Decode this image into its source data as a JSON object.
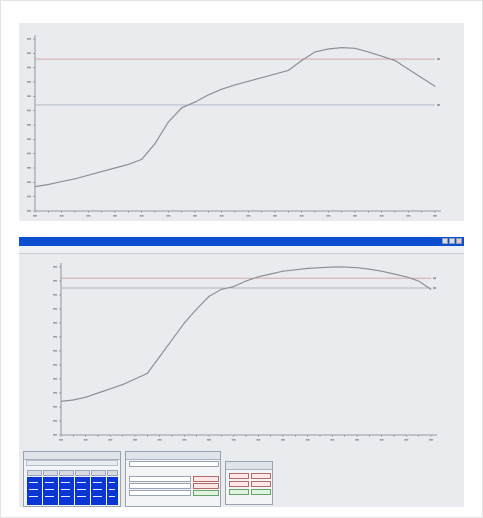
{
  "chart_data": [
    {
      "type": "line",
      "title": "",
      "xlabel": "",
      "ylabel": "",
      "xlim": [
        0,
        300
      ],
      "ylim": [
        0,
        1200
      ],
      "x": [
        0,
        10,
        20,
        30,
        40,
        50,
        60,
        70,
        80,
        90,
        100,
        110,
        120,
        130,
        140,
        150,
        160,
        170,
        180,
        190,
        200,
        210,
        220,
        230,
        240,
        250,
        260,
        270,
        280,
        290,
        300
      ],
      "series": [
        {
          "name": "",
          "values": [
            170,
            185,
            205,
            225,
            250,
            275,
            300,
            325,
            360,
            470,
            620,
            720,
            760,
            810,
            850,
            880,
            905,
            930,
            955,
            980,
            1050,
            1110,
            1130,
            1140,
            1135,
            1110,
            1080,
            1050,
            990,
            930,
            870
          ]
        }
      ],
      "reference_lines": [
        {
          "value": 1060,
          "color": "#d0a0a0"
        },
        {
          "value": 740,
          "color": "#aab4c0"
        }
      ],
      "y_ticks_shown": true,
      "x_ticks_shown": true,
      "grid": false,
      "legend": "none"
    },
    {
      "type": "line",
      "title": "",
      "xlabel": "",
      "ylabel": "",
      "xlim": [
        0,
        300
      ],
      "ylim": [
        0,
        1200
      ],
      "x": [
        0,
        10,
        20,
        30,
        40,
        50,
        60,
        70,
        80,
        90,
        100,
        110,
        120,
        130,
        140,
        150,
        160,
        170,
        180,
        190,
        200,
        210,
        220,
        230,
        240,
        250,
        260,
        270,
        280,
        290,
        300
      ],
      "series": [
        {
          "name": "",
          "values": [
            240,
            250,
            270,
            300,
            330,
            360,
            400,
            440,
            560,
            680,
            800,
            900,
            990,
            1040,
            1060,
            1100,
            1130,
            1150,
            1170,
            1180,
            1190,
            1195,
            1200,
            1200,
            1195,
            1185,
            1170,
            1150,
            1130,
            1100,
            1040
          ]
        }
      ],
      "reference_lines": [
        {
          "value": 1120,
          "color": "#d0a0a0"
        },
        {
          "value": 1050,
          "color": "#aab4c0"
        }
      ],
      "y_ticks_shown": true,
      "x_ticks_shown": true,
      "grid": false,
      "legend": "none"
    }
  ],
  "colors": {
    "panel_bg": "#e9ebee",
    "line": "#8c9097",
    "ref_red": "#d0a0a0",
    "ref_gray": "#aab4c0",
    "titlebar": "#0b4fd0",
    "table_blue": "#0a36d8"
  },
  "window": {
    "icon_names": [
      "minimize-icon",
      "maximize-icon",
      "close-icon"
    ]
  }
}
